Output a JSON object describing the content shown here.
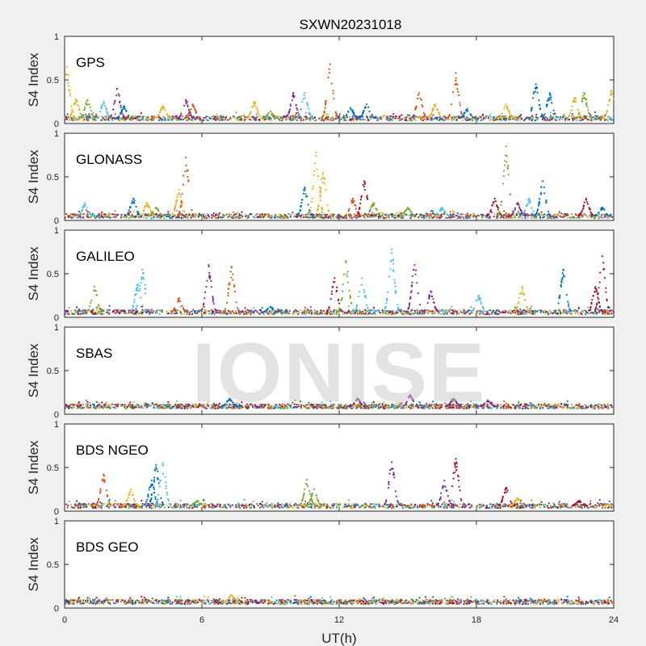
{
  "watermark": "IONISE",
  "chart_data": {
    "type": "scatter",
    "title": "SXWN20231018",
    "xlabel": "UT(h)",
    "ylabel": "S4 Index",
    "xlim": [
      0,
      24
    ],
    "ylim": [
      0,
      1
    ],
    "xticks": [
      "0",
      "6",
      "12",
      "18",
      "24"
    ],
    "yticks": [
      "0",
      "0.5",
      "1"
    ],
    "grid": false,
    "colors": [
      "#0072BD",
      "#D95319",
      "#EDB120",
      "#7E2F8E",
      "#77AC30",
      "#4DBEEE",
      "#A2142F"
    ],
    "panels": [
      {
        "system": "GPS",
        "baseline": 0.06,
        "peaks": [
          {
            "x": 0.1,
            "y": 0.65,
            "c": 2
          },
          {
            "x": 0.5,
            "y": 0.28,
            "c": 2
          },
          {
            "x": 1.0,
            "y": 0.27,
            "c": 4
          },
          {
            "x": 1.7,
            "y": 0.25,
            "c": 5
          },
          {
            "x": 2.3,
            "y": 0.4,
            "c": 3
          },
          {
            "x": 2.6,
            "y": 0.2,
            "c": 0
          },
          {
            "x": 4.3,
            "y": 0.2,
            "c": 2
          },
          {
            "x": 5.3,
            "y": 0.27,
            "c": 3
          },
          {
            "x": 5.6,
            "y": 0.22,
            "c": 1
          },
          {
            "x": 8.3,
            "y": 0.25,
            "c": 2
          },
          {
            "x": 9.0,
            "y": 0.14,
            "c": 4
          },
          {
            "x": 10.0,
            "y": 0.35,
            "c": 3
          },
          {
            "x": 10.5,
            "y": 0.35,
            "c": 5
          },
          {
            "x": 11.6,
            "y": 0.68,
            "c": 1
          },
          {
            "x": 12.5,
            "y": 0.18,
            "c": 0
          },
          {
            "x": 13.2,
            "y": 0.22,
            "c": 0
          },
          {
            "x": 15.5,
            "y": 0.35,
            "c": 1
          },
          {
            "x": 16.2,
            "y": 0.22,
            "c": 2
          },
          {
            "x": 17.1,
            "y": 0.58,
            "c": 1
          },
          {
            "x": 17.6,
            "y": 0.17,
            "c": 0
          },
          {
            "x": 19.3,
            "y": 0.22,
            "c": 2
          },
          {
            "x": 20.6,
            "y": 0.45,
            "c": 0
          },
          {
            "x": 21.2,
            "y": 0.35,
            "c": 0
          },
          {
            "x": 22.3,
            "y": 0.3,
            "c": 2
          },
          {
            "x": 22.7,
            "y": 0.35,
            "c": 4
          },
          {
            "x": 23.9,
            "y": 0.38,
            "c": 2
          }
        ]
      },
      {
        "system": "GLONASS",
        "baseline": 0.05,
        "peaks": [
          {
            "x": 0.9,
            "y": 0.2,
            "c": 5
          },
          {
            "x": 3.0,
            "y": 0.25,
            "c": 0
          },
          {
            "x": 3.6,
            "y": 0.2,
            "c": 2
          },
          {
            "x": 4.0,
            "y": 0.15,
            "c": 4
          },
          {
            "x": 5.0,
            "y": 0.35,
            "c": 2
          },
          {
            "x": 5.3,
            "y": 0.72,
            "c": 1
          },
          {
            "x": 10.5,
            "y": 0.38,
            "c": 0
          },
          {
            "x": 11.0,
            "y": 0.78,
            "c": 2
          },
          {
            "x": 11.3,
            "y": 0.55,
            "c": 2
          },
          {
            "x": 12.6,
            "y": 0.25,
            "c": 1
          },
          {
            "x": 13.1,
            "y": 0.45,
            "c": 6
          },
          {
            "x": 13.5,
            "y": 0.2,
            "c": 4
          },
          {
            "x": 15.0,
            "y": 0.15,
            "c": 4
          },
          {
            "x": 16.5,
            "y": 0.15,
            "c": 5
          },
          {
            "x": 18.8,
            "y": 0.25,
            "c": 6
          },
          {
            "x": 19.3,
            "y": 0.85,
            "c": 4
          },
          {
            "x": 19.8,
            "y": 0.2,
            "c": 3
          },
          {
            "x": 20.3,
            "y": 0.25,
            "c": 5
          },
          {
            "x": 20.9,
            "y": 0.45,
            "c": 0
          },
          {
            "x": 22.8,
            "y": 0.25,
            "c": 6
          },
          {
            "x": 23.5,
            "y": 0.15,
            "c": 0
          }
        ]
      },
      {
        "system": "GALILEO",
        "baseline": 0.06,
        "peaks": [
          {
            "x": 1.3,
            "y": 0.35,
            "c": 4
          },
          {
            "x": 3.2,
            "y": 0.38,
            "c": 5
          },
          {
            "x": 3.4,
            "y": 0.55,
            "c": 5
          },
          {
            "x": 5.0,
            "y": 0.22,
            "c": 1
          },
          {
            "x": 6.3,
            "y": 0.6,
            "c": 3
          },
          {
            "x": 7.3,
            "y": 0.58,
            "c": 1
          },
          {
            "x": 9.0,
            "y": 0.12,
            "c": 0
          },
          {
            "x": 11.8,
            "y": 0.45,
            "c": 6
          },
          {
            "x": 12.3,
            "y": 0.65,
            "c": 4
          },
          {
            "x": 13.0,
            "y": 0.45,
            "c": 5
          },
          {
            "x": 14.3,
            "y": 0.78,
            "c": 5
          },
          {
            "x": 15.3,
            "y": 0.6,
            "c": 3
          },
          {
            "x": 16.0,
            "y": 0.3,
            "c": 3
          },
          {
            "x": 18.1,
            "y": 0.25,
            "c": 5
          },
          {
            "x": 20.0,
            "y": 0.35,
            "c": 2
          },
          {
            "x": 21.8,
            "y": 0.55,
            "c": 0
          },
          {
            "x": 23.2,
            "y": 0.35,
            "c": 6
          },
          {
            "x": 23.5,
            "y": 0.7,
            "c": 6
          }
        ]
      },
      {
        "system": "SBAS",
        "baseline": 0.09,
        "peaks": [
          {
            "x": 7.2,
            "y": 0.18,
            "c": 0
          },
          {
            "x": 12.8,
            "y": 0.18,
            "c": 3
          },
          {
            "x": 15.1,
            "y": 0.22,
            "c": 3
          },
          {
            "x": 17.0,
            "y": 0.18,
            "c": 3
          },
          {
            "x": 18.5,
            "y": 0.16,
            "c": 3
          }
        ]
      },
      {
        "system": "BDS NGEO",
        "baseline": 0.06,
        "peaks": [
          {
            "x": 1.7,
            "y": 0.42,
            "c": 1
          },
          {
            "x": 2.9,
            "y": 0.25,
            "c": 2
          },
          {
            "x": 3.8,
            "y": 0.35,
            "c": 0
          },
          {
            "x": 4.0,
            "y": 0.53,
            "c": 0
          },
          {
            "x": 4.3,
            "y": 0.55,
            "c": 5
          },
          {
            "x": 5.8,
            "y": 0.12,
            "c": 4
          },
          {
            "x": 10.6,
            "y": 0.36,
            "c": 4
          },
          {
            "x": 10.9,
            "y": 0.25,
            "c": 4
          },
          {
            "x": 14.3,
            "y": 0.56,
            "c": 3
          },
          {
            "x": 16.6,
            "y": 0.35,
            "c": 3
          },
          {
            "x": 17.1,
            "y": 0.6,
            "c": 6
          },
          {
            "x": 19.3,
            "y": 0.27,
            "c": 6
          },
          {
            "x": 19.8,
            "y": 0.15,
            "c": 2
          },
          {
            "x": 22.5,
            "y": 0.12,
            "c": 6
          }
        ]
      },
      {
        "system": "BDS GEO",
        "baseline": 0.07,
        "peaks": [
          {
            "x": 7.3,
            "y": 0.15,
            "c": 2
          }
        ]
      }
    ]
  }
}
